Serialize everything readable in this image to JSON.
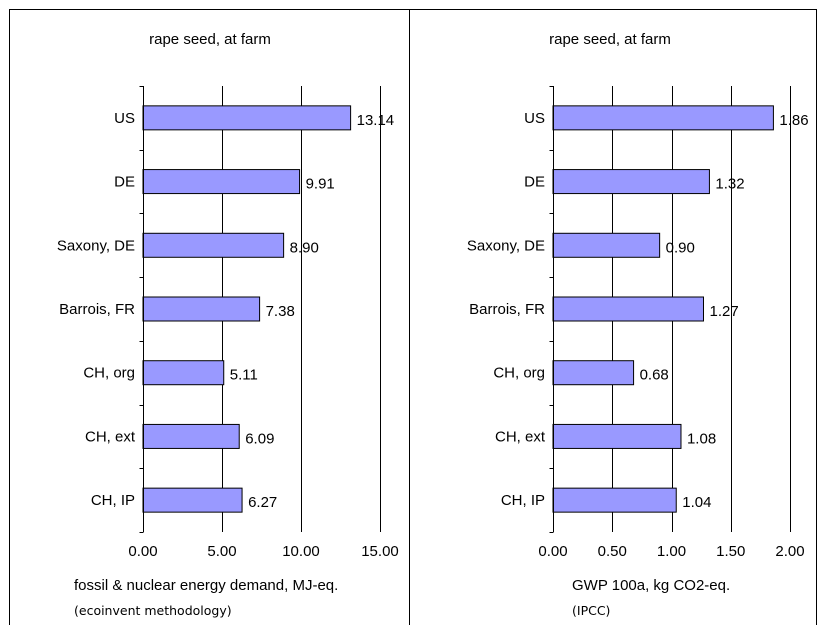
{
  "chart_data": [
    {
      "type": "bar",
      "orientation": "horizontal",
      "title": "rape seed, at farm",
      "xlabel": "fossil & nuclear energy demand, MJ-eq.",
      "xlabel_note": "(ecoinvent methodology)",
      "categories": [
        "US",
        "DE",
        "Saxony, DE",
        "Barrois, FR",
        "CH, org",
        "CH, ext",
        "CH, IP"
      ],
      "values": [
        13.14,
        9.91,
        8.9,
        7.38,
        5.11,
        6.09,
        6.27
      ],
      "value_labels": [
        "13.14",
        "9.91",
        "8.90",
        "7.38",
        "5.11",
        "6.09",
        "6.27"
      ],
      "xlim": [
        0,
        15
      ],
      "x_ticks": [
        0,
        5,
        10,
        15
      ],
      "x_tick_labels": [
        "0.00",
        "5.00",
        "10.00",
        "15.00"
      ],
      "grid": "vertical",
      "bar_color": "#9999ff"
    },
    {
      "type": "bar",
      "orientation": "horizontal",
      "title": "rape seed, at farm",
      "xlabel": "GWP 100a, kg CO2-eq.",
      "xlabel_note": "(IPCC)",
      "categories": [
        "US",
        "DE",
        "Saxony, DE",
        "Barrois, FR",
        "CH, org",
        "CH, ext",
        "CH, IP"
      ],
      "values": [
        1.86,
        1.32,
        0.9,
        1.27,
        0.68,
        1.08,
        1.04
      ],
      "value_labels": [
        "1.86",
        "1.32",
        "0.90",
        "1.27",
        "0.68",
        "1.08",
        "1.04"
      ],
      "xlim": [
        0,
        2
      ],
      "x_ticks": [
        0,
        0.5,
        1,
        1.5,
        2
      ],
      "x_tick_labels": [
        "0.00",
        "0.50",
        "1.00",
        "1.50",
        "2.00"
      ],
      "grid": "vertical",
      "bar_color": "#9999ff"
    }
  ]
}
